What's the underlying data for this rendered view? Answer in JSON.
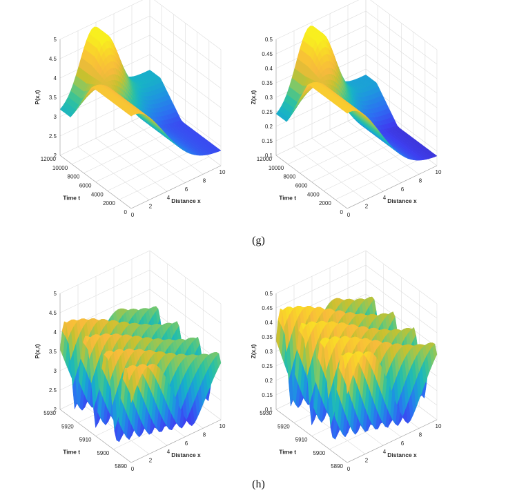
{
  "captions": {
    "g": "(g)",
    "h": "(h)"
  },
  "palette": [
    "#3b1fa8",
    "#3d3ff0",
    "#2c6ff2",
    "#1e95e0",
    "#17b3c6",
    "#30c29d",
    "#7bc86a",
    "#c7c12f",
    "#f7ba3c",
    "#f9d02c",
    "#f8ef1f"
  ],
  "chart_data": [
    {
      "id": "g-left",
      "type": "surface",
      "xlabel": "Distance x",
      "ylabel": "Time t",
      "zlabel": "P(x,t)",
      "xlim": [
        0,
        10
      ],
      "ylim": [
        0,
        12000
      ],
      "zlim": [
        2,
        5
      ],
      "xticks": [
        "0",
        "2",
        "4",
        "6",
        "8",
        "10"
      ],
      "yticks": [
        "0",
        "2000",
        "4000",
        "6000",
        "8000",
        "10000",
        "12000"
      ],
      "zticks": [
        "2",
        "2.5",
        "3",
        "3.5",
        "4",
        "4.5",
        "5"
      ],
      "surface": {
        "kind": "transient",
        "zmin": 2.3,
        "zmax": 4.4,
        "steady_low": 3.1,
        "steady_peak": 4.9
      }
    },
    {
      "id": "g-right",
      "type": "surface",
      "xlabel": "Distance x",
      "ylabel": "Time t",
      "zlabel": "Z(x,t)",
      "xlim": [
        0,
        10
      ],
      "ylim": [
        0,
        12000
      ],
      "zlim": [
        0.1,
        0.5
      ],
      "xticks": [
        "0",
        "2",
        "4",
        "6",
        "8",
        "10"
      ],
      "yticks": [
        "0",
        "2000",
        "4000",
        "6000",
        "8000",
        "10000",
        "12000"
      ],
      "zticks": [
        "0.1",
        "0.15",
        "0.2",
        "0.25",
        "0.3",
        "0.35",
        "0.4",
        "0.45",
        "0.5"
      ],
      "surface": {
        "kind": "transient",
        "zmin": 0.12,
        "zmax": 0.43,
        "steady_low": 0.23,
        "steady_peak": 0.49
      }
    },
    {
      "id": "h-left",
      "type": "surface",
      "xlabel": "Distance x",
      "ylabel": "Time t",
      "zlabel": "P(x,t)",
      "xlim": [
        0,
        10
      ],
      "ylim": [
        5890,
        5930
      ],
      "zlim": [
        2,
        5
      ],
      "xticks": [
        "0",
        "2",
        "4",
        "6",
        "8",
        "10"
      ],
      "yticks": [
        "5890",
        "5900",
        "5910",
        "5920",
        "5930"
      ],
      "zticks": [
        "2",
        "2.5",
        "3",
        "3.5",
        "4",
        "4.5",
        "5"
      ],
      "surface": {
        "kind": "oscillating",
        "zmin": 2.1,
        "zmax": 4.5,
        "periods": 3.5
      }
    },
    {
      "id": "h-right",
      "type": "surface",
      "xlabel": "Distance x",
      "ylabel": "Time t",
      "zlabel": "Z(x,t)",
      "xlim": [
        0,
        10
      ],
      "ylim": [
        5890,
        5930
      ],
      "zlim": [
        0.1,
        0.5
      ],
      "xticks": [
        "0",
        "2",
        "4",
        "6",
        "8",
        "10"
      ],
      "yticks": [
        "5890",
        "5900",
        "5910",
        "5920",
        "5930"
      ],
      "zticks": [
        "0.1",
        "0.15",
        "0.2",
        "0.25",
        "0.3",
        "0.35",
        "0.4",
        "0.45",
        "0.5"
      ],
      "surface": {
        "kind": "oscillating",
        "zmin": 0.12,
        "zmax": 0.48,
        "periods": 3.5
      }
    }
  ]
}
